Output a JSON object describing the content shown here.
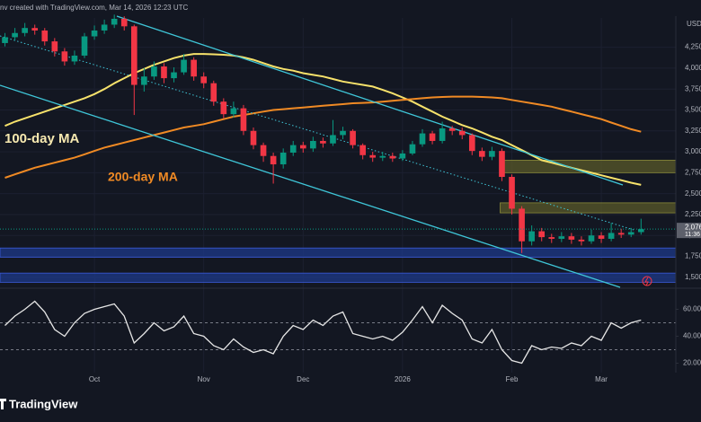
{
  "chart_data": {
    "type": "candlestick",
    "header": "nv created with TradingView.com, Mar 14, 2026 12:23 UTC",
    "currency": "USD",
    "brand": "TradingView",
    "categories": [
      null,
      null,
      null,
      null,
      null,
      null,
      null,
      null,
      null,
      "Oct",
      null,
      null,
      null,
      null,
      null,
      null,
      null,
      null,
      null,
      null,
      "Nov",
      null,
      null,
      null,
      null,
      null,
      null,
      null,
      null,
      null,
      "Dec",
      null,
      null,
      null,
      null,
      null,
      null,
      null,
      null,
      null,
      "2026",
      null,
      null,
      null,
      null,
      null,
      null,
      null,
      null,
      null,
      null,
      "Feb",
      null,
      null,
      null,
      null,
      null,
      null,
      null,
      null,
      "Mar",
      null,
      null,
      null,
      null,
      null,
      null,
      null
    ],
    "open": [
      4300,
      4370,
      4420,
      4480,
      4450,
      4320,
      4200,
      4080,
      4150,
      4380,
      4450,
      4520,
      4590,
      4500,
      3800,
      3900,
      4020,
      3880,
      3950,
      4100,
      3900,
      3820,
      3600,
      3450,
      3520,
      3250,
      3080,
      2950,
      2850,
      2990,
      3080,
      3040,
      3130,
      3100,
      3200,
      3250,
      3080,
      2960,
      2930,
      2950,
      2920,
      2980,
      3090,
      3220,
      3130,
      3280,
      3250,
      3200,
      3010,
      2940,
      3010,
      2700,
      2320,
      1930,
      2050,
      1980,
      1960,
      1990,
      1950,
      1930,
      2000,
      1960,
      2030,
      2010,
      2040,
      null,
      null,
      null
    ],
    "high": [
      4420,
      4480,
      4540,
      4520,
      4480,
      4360,
      4240,
      4210,
      4420,
      4510,
      4580,
      4640,
      4620,
      4520,
      4000,
      4080,
      4060,
      4010,
      4170,
      4130,
      3950,
      3850,
      3640,
      3600,
      3560,
      3290,
      3110,
      2990,
      3040,
      3130,
      3120,
      3180,
      3170,
      3380,
      3300,
      3270,
      3100,
      3000,
      3000,
      2990,
      3020,
      3130,
      3270,
      3250,
      3360,
      3310,
      3290,
      3220,
      3050,
      3060,
      3040,
      2730,
      2350,
      2120,
      2090,
      2020,
      2040,
      2030,
      1990,
      2070,
      2040,
      2150,
      2080,
      2090,
      2200,
      null,
      null,
      null
    ],
    "low": [
      4260,
      4330,
      4380,
      4400,
      4270,
      4140,
      4030,
      4040,
      4120,
      4340,
      4410,
      4480,
      4450,
      3440,
      3720,
      3860,
      3820,
      3830,
      3920,
      3850,
      3760,
      3550,
      3400,
      3410,
      3200,
      3030,
      2880,
      2620,
      2800,
      2950,
      2990,
      3000,
      3050,
      3070,
      3150,
      3040,
      2910,
      2880,
      2890,
      2880,
      2890,
      2960,
      3060,
      3090,
      3100,
      3200,
      3150,
      2960,
      2890,
      2900,
      2650,
      2250,
      1790,
      1880,
      1930,
      1910,
      1920,
      1900,
      1880,
      1900,
      1910,
      1930,
      1970,
      1980,
      2010,
      null,
      null,
      null
    ],
    "close": [
      4370,
      4420,
      4480,
      4450,
      4320,
      4200,
      4080,
      4150,
      4380,
      4450,
      4520,
      4590,
      4500,
      3800,
      3900,
      4020,
      3880,
      3950,
      4100,
      3900,
      3820,
      3600,
      3450,
      3520,
      3250,
      3080,
      2950,
      2850,
      2990,
      3080,
      3040,
      3130,
      3100,
      3200,
      3250,
      3080,
      2960,
      2930,
      2950,
      2920,
      2980,
      3090,
      3220,
      3130,
      3280,
      3250,
      3200,
      3010,
      2940,
      3010,
      2700,
      2320,
      1930,
      2050,
      1980,
      1960,
      1990,
      1950,
      1930,
      2000,
      1960,
      2030,
      2010,
      2040,
      2076,
      null,
      null,
      null
    ],
    "up_color": "#089981",
    "down_color": "#f23645",
    "series": [
      {
        "name": "100-day MA",
        "color": "#f7e26b",
        "values": [
          3310,
          3360,
          3400,
          3440,
          3480,
          3520,
          3560,
          3600,
          3640,
          3690,
          3750,
          3820,
          3880,
          3940,
          3990,
          4040,
          4080,
          4120,
          4150,
          4170,
          4170,
          4165,
          4160,
          4150,
          4130,
          4100,
          4060,
          4020,
          3990,
          3970,
          3940,
          3920,
          3900,
          3870,
          3840,
          3820,
          3800,
          3780,
          3740,
          3700,
          3650,
          3600,
          3540,
          3480,
          3420,
          3370,
          3320,
          3280,
          3230,
          3180,
          3140,
          3080,
          3020,
          2960,
          2900,
          2870,
          2840,
          2810,
          2780,
          2750,
          2720,
          2690,
          2660,
          2630,
          2605,
          null,
          null,
          null
        ]
      },
      {
        "name": "200-day MA",
        "color": "#f08a24",
        "values": [
          2690,
          2730,
          2770,
          2810,
          2840,
          2870,
          2900,
          2930,
          2970,
          3010,
          3050,
          3080,
          3110,
          3140,
          3170,
          3200,
          3230,
          3260,
          3290,
          3310,
          3330,
          3360,
          3390,
          3420,
          3440,
          3460,
          3480,
          3500,
          3510,
          3520,
          3530,
          3540,
          3550,
          3560,
          3570,
          3580,
          3585,
          3590,
          3600,
          3610,
          3620,
          3630,
          3640,
          3650,
          3655,
          3660,
          3660,
          3660,
          3655,
          3650,
          3640,
          3620,
          3600,
          3580,
          3560,
          3540,
          3510,
          3480,
          3450,
          3420,
          3390,
          3350,
          3310,
          3270,
          3240,
          null,
          null,
          null
        ]
      }
    ],
    "zones": [
      {
        "low": 2750,
        "high": 2900,
        "color": "#59592a",
        "full_width": false
      },
      {
        "low": 2270,
        "high": 2390,
        "color": "#59592a",
        "full_width": false
      },
      {
        "low": 1740,
        "high": 1850,
        "color": "#1e3a8a",
        "full_width": true
      },
      {
        "low": 1440,
        "high": 1550,
        "color": "#1e3a8a",
        "full_width": true
      }
    ],
    "ylim": [
      1380,
      4600
    ],
    "yticks": [
      {
        "value": 1500,
        "label": "1,500"
      },
      {
        "value": 1750,
        "label": "1,750"
      },
      {
        "value": 2000,
        "label": "2,000"
      },
      {
        "value": 2250,
        "label": "2,250"
      },
      {
        "value": 2500,
        "label": "2,500"
      },
      {
        "value": 2750,
        "label": "2,750"
      },
      {
        "value": 3000,
        "label": "3,000"
      },
      {
        "value": 3250,
        "label": "3,250"
      },
      {
        "value": 3500,
        "label": "3,500"
      },
      {
        "value": 3750,
        "label": "3,750"
      },
      {
        "value": 4000,
        "label": "4,000"
      },
      {
        "value": 4250,
        "label": "4,250"
      }
    ],
    "last_price": {
      "value": 2076,
      "label": "2,076"
    },
    "countdown": "11:36",
    "annotations": [
      "100-day MA",
      "200-day MA"
    ],
    "rsi": {
      "color": "#e6e6e6",
      "values": [
        48,
        55,
        60,
        66,
        58,
        45,
        40,
        50,
        57,
        60,
        62,
        64,
        55,
        35,
        42,
        50,
        44,
        47,
        55,
        42,
        40,
        33,
        30,
        38,
        32,
        28,
        30,
        27,
        40,
        48,
        45,
        52,
        48,
        55,
        58,
        42,
        40,
        38,
        40,
        37,
        43,
        52,
        62,
        50,
        63,
        57,
        52,
        38,
        35,
        45,
        30,
        22,
        20,
        33,
        30,
        32,
        31,
        35,
        33,
        40,
        37,
        50,
        46,
        50,
        52,
        null,
        null,
        null
      ],
      "ylim": [
        13,
        73
      ],
      "yticks": [
        {
          "value": 20,
          "label": "20.00"
        },
        {
          "value": 40,
          "label": "40.00"
        },
        {
          "value": 60,
          "label": "60.00"
        }
      ],
      "levels": [
        30,
        50
      ]
    }
  }
}
